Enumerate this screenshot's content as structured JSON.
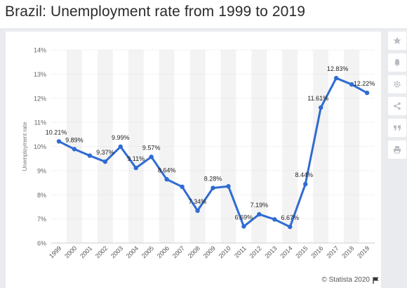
{
  "chart_data": {
    "type": "line",
    "title": "Brazil: Unemployment rate from 1999 to 2019",
    "xlabel": "",
    "ylabel": "Unemployment rate",
    "categories": [
      "1999",
      "2000",
      "2001",
      "2002",
      "2003",
      "2004",
      "2005",
      "2006",
      "2007",
      "2008",
      "2009",
      "2010",
      "2011",
      "2012",
      "2013",
      "2014",
      "2015",
      "2016",
      "2017",
      "2018",
      "2019"
    ],
    "values": [
      10.21,
      9.89,
      9.62,
      9.37,
      9.99,
      9.11,
      9.57,
      8.64,
      8.33,
      7.34,
      8.28,
      8.35,
      6.69,
      7.19,
      6.98,
      6.67,
      8.44,
      11.61,
      12.83,
      12.57,
      12.22
    ],
    "data_labels": {
      "0": "10.21%",
      "1": "9.89%",
      "3": "9.37%",
      "4": "9.99%",
      "5": "9.11%",
      "6": "9.57%",
      "7": "8.64%",
      "9": "7.34%",
      "10": "8.28%",
      "12": "6.69%",
      "13": "7.19%",
      "15": "6.67%",
      "16": "8.44%",
      "17": "11.61%",
      "18": "12.83%",
      "20": "12.22%"
    },
    "yticks": [
      "6%",
      "7%",
      "8%",
      "9%",
      "10%",
      "11%",
      "12%",
      "13%",
      "14%"
    ],
    "ylim": [
      6,
      14
    ],
    "grid": true,
    "line_color": "#2f6bd3"
  },
  "credit": {
    "text": "© Statista 2020",
    "flag_icon": "flag-icon"
  },
  "toolbar": {
    "icons": [
      "star-icon",
      "bell-icon",
      "gear-icon",
      "share-icon",
      "quote-icon",
      "print-icon"
    ]
  }
}
